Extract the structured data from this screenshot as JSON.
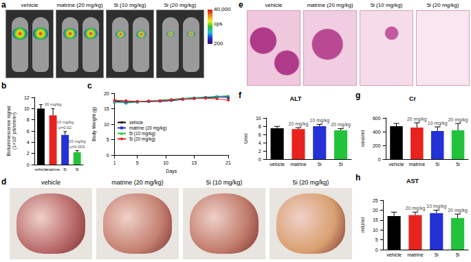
{
  "chart_data": [
    {
      "panel": "b",
      "type": "bar",
      "y_label": "Bioluminescense signal (1×10⁷ ph/s/mm²)",
      "categories": [
        "vehicle",
        "matrine",
        "5i",
        "5i"
      ],
      "values": [
        10.0,
        8.8,
        5.3,
        2.2
      ],
      "errors": [
        0.7,
        1.2,
        0.6,
        0.3
      ],
      "colors": [
        "#000000",
        "#e8231f",
        "#2331d6",
        "#22c33a"
      ],
      "dose_labels": [
        null,
        "20 mg/kg",
        "10 mg/kg",
        "20 mg/kg"
      ],
      "p_values": [
        null,
        null,
        "p=0.02",
        "p=0.003"
      ],
      "ylim": [
        0,
        12
      ],
      "yticks": [
        0,
        2,
        4,
        6,
        8,
        10,
        12
      ],
      "grid": false
    },
    {
      "panel": "c",
      "type": "line",
      "x_label": "Days",
      "y_label": "Body Weight (g)",
      "x": [
        1,
        3,
        5,
        7,
        9,
        11,
        13,
        15,
        17,
        19,
        21
      ],
      "series": [
        {
          "name": "vehicle",
          "color": "#000000",
          "marker": "diamond",
          "values": [
            17.5,
            17.3,
            17.2,
            17.3,
            17.4,
            17.6,
            18.0,
            18.3,
            18.5,
            18.7,
            19.0
          ]
        },
        {
          "name": "matrine (20 mg/kg)",
          "color": "#2331d6",
          "marker": "rect",
          "values": [
            17.3,
            17.0,
            17.2,
            17.4,
            17.5,
            17.8,
            18.1,
            18.4,
            18.6,
            18.8,
            18.6
          ]
        },
        {
          "name": "5i (10 mg/kg)",
          "color": "#22c33a",
          "marker": "triangle",
          "values": [
            17.2,
            16.8,
            17.2,
            17.5,
            17.8,
            18.1,
            18.4,
            18.6,
            18.8,
            19.0,
            19.2
          ]
        },
        {
          "name": "5i (20 mg/kg)",
          "color": "#e8231f",
          "marker": "circle",
          "values": [
            17.8,
            17.6,
            17.4,
            17.5,
            17.6,
            17.9,
            18.1,
            18.3,
            18.4,
            18.2,
            17.8
          ]
        }
      ],
      "xlim": [
        1,
        21
      ],
      "xticks": [
        1,
        5,
        10,
        15,
        21
      ],
      "ylim": [
        0,
        20
      ],
      "yticks": [
        0,
        5,
        10,
        15,
        20
      ],
      "legend": "center-left",
      "grid": false
    },
    {
      "panel": "f",
      "type": "bar",
      "title": "ALT",
      "y_label": "U/ml",
      "categories": [
        "vehicle",
        "matrine",
        "5i",
        "5i"
      ],
      "values": [
        7.5,
        7.3,
        8.0,
        7.0
      ],
      "errors": [
        0.45,
        0.35,
        0.45,
        0.4
      ],
      "colors": [
        "#000000",
        "#e8231f",
        "#2331d6",
        "#22c33a"
      ],
      "dose_labels": [
        null,
        "20 mg/kg",
        "10 mg/kg",
        "20 mg/kg"
      ],
      "ylim": [
        0,
        10
      ],
      "yticks": [
        0,
        2,
        4,
        6,
        8,
        10
      ],
      "grid": false
    },
    {
      "panel": "g",
      "type": "bar",
      "title": "Cr",
      "y_label": "nmol/ml",
      "categories": [
        "vehicle",
        "matrine",
        "5i",
        "5i"
      ],
      "values": [
        480,
        460,
        410,
        420
      ],
      "errors": [
        40,
        70,
        60,
        100
      ],
      "colors": [
        "#000000",
        "#e8231f",
        "#2331d6",
        "#22c33a"
      ],
      "dose_labels": [
        null,
        "20 mg/kg",
        "10 mg/kg",
        "20 mg/kg"
      ],
      "ylim": [
        0,
        600
      ],
      "yticks": [
        0,
        200,
        400,
        600
      ],
      "grid": false
    },
    {
      "panel": "h",
      "type": "bar",
      "title": "AST",
      "y_label": "mIU/ml",
      "categories": [
        "vehicle",
        "matrine",
        "5i",
        "5i"
      ],
      "values": [
        17.0,
        17.5,
        18.5,
        16.0
      ],
      "errors": [
        2.0,
        1.5,
        1.5,
        2.0
      ],
      "colors": [
        "#000000",
        "#e8231f",
        "#2331d6",
        "#22c33a"
      ],
      "dose_labels": [
        null,
        "20 mg/kg",
        "10 mg/kg",
        "20 mg/kg"
      ],
      "ylim": [
        0,
        25
      ],
      "yticks": [
        0,
        5,
        10,
        15,
        20,
        25
      ],
      "grid": false
    }
  ],
  "image_panels": [
    {
      "panel": "a",
      "labels": [
        "vehicle",
        "matrine (20 mg/kg)",
        "5i (10 mg/kg)",
        "5i (20 mg/kg)"
      ],
      "colorbar": {
        "range": [
          200,
          40000
        ],
        "ticks": [
          {
            "value": 40000,
            "label": "40,000"
          },
          200
        ],
        "unit": "cps"
      }
    },
    {
      "panel": "d",
      "labels": [
        "vehicle",
        "matrine (20 mg/kg)",
        "5i (10 mg/kg)",
        "5i (20 mg/kg)"
      ]
    },
    {
      "panel": "e",
      "labels": [
        "vehicle",
        "matrine (20 mg/kg)",
        "5i (10 mg/kg)",
        "5i (20 mg/kg)"
      ]
    }
  ]
}
